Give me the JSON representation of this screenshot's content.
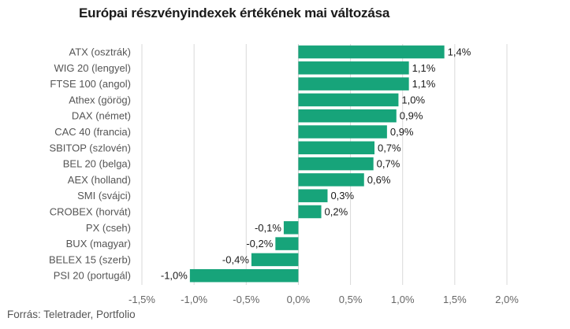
{
  "colors": {
    "bar": "#17a47a",
    "grid": "#d9d9d9",
    "zero_line": "#d0d0d0"
  },
  "chart_data": {
    "type": "bar",
    "orientation": "horizontal",
    "title": "Európai részvényindexek értékének mai változása",
    "source": "Forrás: Teletrader, Portfolio",
    "categories": [
      "ATX (osztrák)",
      "WIG 20 (lengyel)",
      "FTSE 100 (angol)",
      "Athex (görög)",
      "DAX (német)",
      "CAC 40 (francia)",
      "SBITOP (szlovén)",
      "BEL 20 (belga)",
      "AEX (holland)",
      "SMI (svájci)",
      "CROBEX (horvát)",
      "PX (cseh)",
      "BUX (magyar)",
      "BELEX 15 (szerb)",
      "PSI 20 (portugál)"
    ],
    "values": [
      1.4,
      1.06,
      1.06,
      0.96,
      0.94,
      0.85,
      0.73,
      0.72,
      0.63,
      0.28,
      0.22,
      -0.14,
      -0.22,
      -0.45,
      -1.04
    ],
    "value_labels": [
      "1,4%",
      "1,1%",
      "1,1%",
      "1,0%",
      "0,9%",
      "0,9%",
      "0,7%",
      "0,7%",
      "0,6%",
      "0,3%",
      "0,2%",
      "-0,1%",
      "-0,2%",
      "-0,4%",
      "-1,0%"
    ],
    "xlim": [
      -1.5,
      2.0
    ],
    "x_ticks": [
      -1.5,
      -1.0,
      -0.5,
      0.0,
      0.5,
      1.0,
      1.5,
      2.0
    ],
    "x_tick_labels": [
      "-1,5%",
      "-1,0%",
      "-0,5%",
      "0,0%",
      "0,5%",
      "1,0%",
      "1,5%",
      "2,0%"
    ],
    "grid": true
  }
}
